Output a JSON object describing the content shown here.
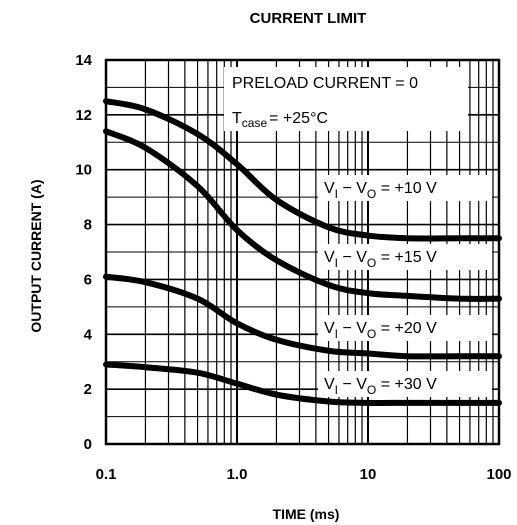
{
  "chart_data": {
    "type": "line",
    "title": "CURRENT LIMIT",
    "xlabel": "TIME (ms)",
    "ylabel": "OUTPUT CURRENT (A)",
    "x_scale": "log",
    "xlim": [
      0.1,
      100
    ],
    "ylim": [
      0,
      14
    ],
    "x_ticks": [
      "0.1",
      "1.0",
      "10",
      "100"
    ],
    "y_ticks": [
      "0",
      "2",
      "4",
      "6",
      "8",
      "10",
      "12",
      "14"
    ],
    "grid": true,
    "annotations": {
      "preload": "PRELOAD CURRENT = 0",
      "tcase_main": "T",
      "tcase_sub": "case",
      "tcase_value": "= +25°C"
    },
    "series": [
      {
        "name": "VI − VO = +10 V",
        "label_main": "V",
        "label_sub1": "I",
        "label_mid": " − V",
        "label_sub2": "O",
        "label_tail": " = +10 V",
        "x": [
          0.1,
          0.2,
          0.5,
          1.0,
          2.0,
          5.0,
          10,
          20,
          50,
          100
        ],
        "y": [
          12.5,
          12.2,
          11.3,
          10.2,
          8.9,
          7.9,
          7.6,
          7.5,
          7.5,
          7.5
        ]
      },
      {
        "name": "VI − VO = +15 V",
        "label_main": "V",
        "label_sub1": "I",
        "label_mid": " − V",
        "label_sub2": "O",
        "label_tail": " = +15 V",
        "x": [
          0.1,
          0.2,
          0.5,
          1.0,
          2.0,
          5.0,
          10,
          20,
          50,
          100
        ],
        "y": [
          11.4,
          10.8,
          9.4,
          7.8,
          6.7,
          5.8,
          5.5,
          5.4,
          5.3,
          5.3
        ]
      },
      {
        "name": "VI − VO = +20 V",
        "label_main": "V",
        "label_sub1": "I",
        "label_mid": " − V",
        "label_sub2": "O",
        "label_tail": " = +20 V",
        "x": [
          0.1,
          0.2,
          0.5,
          1.0,
          2.0,
          5.0,
          10,
          20,
          50,
          100
        ],
        "y": [
          6.1,
          5.9,
          5.3,
          4.4,
          3.8,
          3.4,
          3.3,
          3.2,
          3.2,
          3.2
        ]
      },
      {
        "name": "VI − VO = +30 V",
        "label_main": "V",
        "label_sub1": "I",
        "label_mid": " − V",
        "label_sub2": "O",
        "label_tail": " = +30 V",
        "x": [
          0.1,
          0.2,
          0.5,
          1.0,
          2.0,
          5.0,
          10,
          20,
          50,
          100
        ],
        "y": [
          2.9,
          2.8,
          2.6,
          2.2,
          1.8,
          1.55,
          1.5,
          1.5,
          1.5,
          1.5
        ]
      }
    ],
    "colors": {
      "line": "#000000",
      "grid": "#000000"
    }
  }
}
